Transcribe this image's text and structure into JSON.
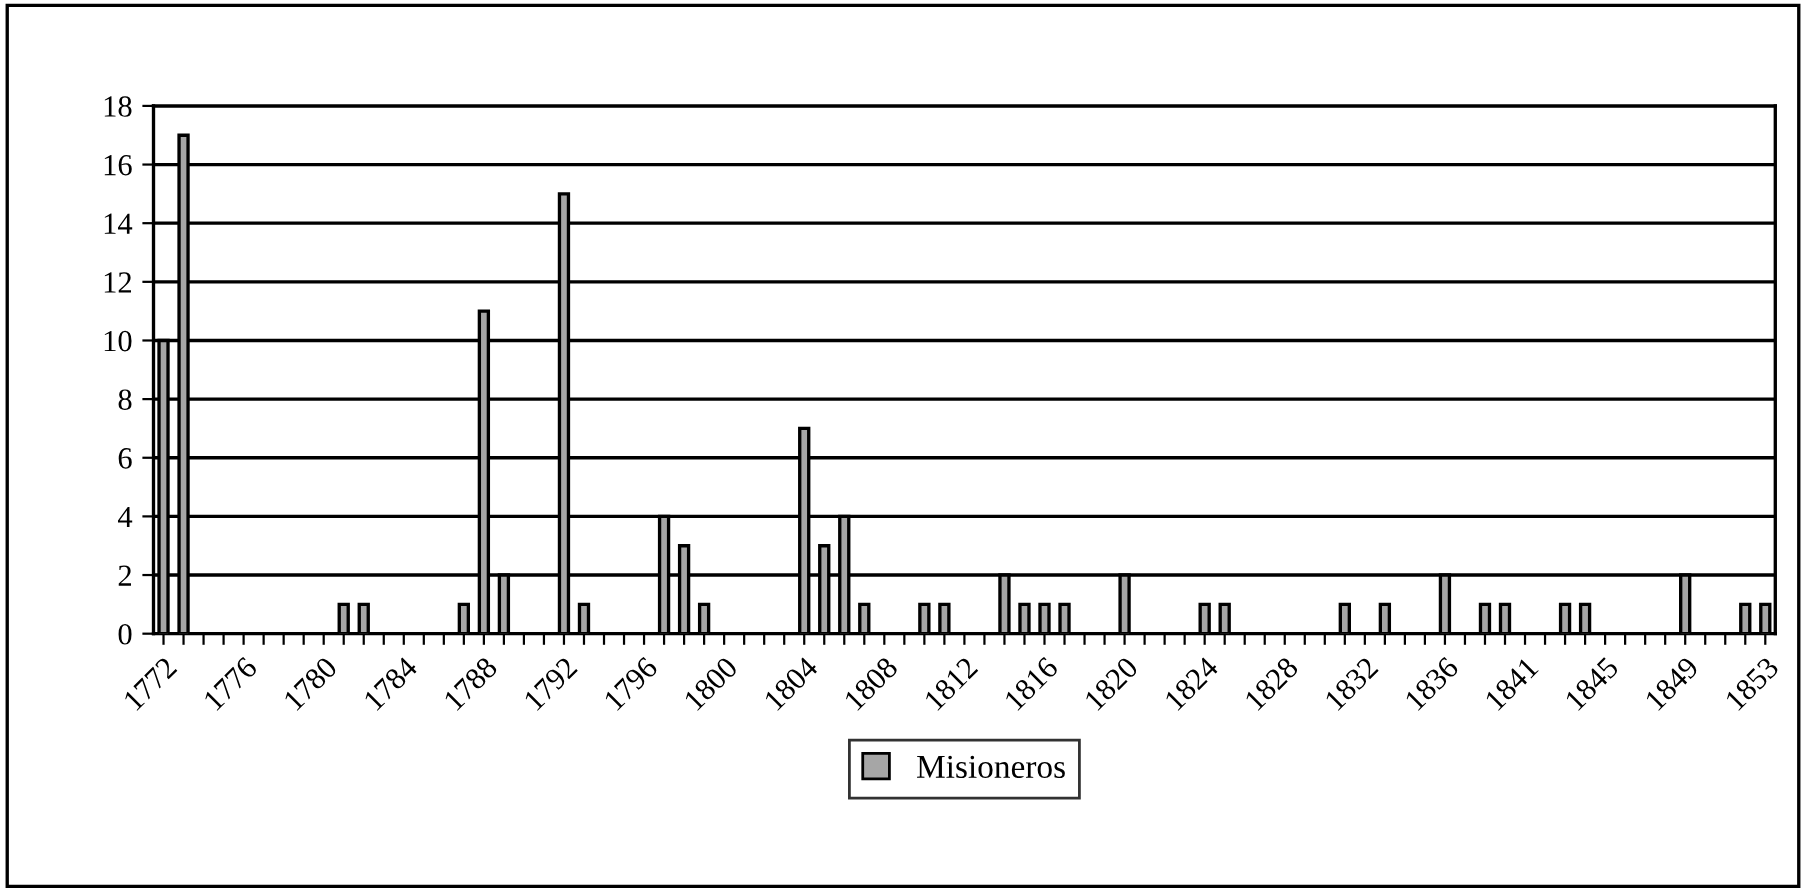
{
  "chart_data": {
    "type": "bar",
    "categories": [
      "1772",
      null,
      null,
      null,
      "1776",
      null,
      null,
      null,
      "1780",
      null,
      null,
      null,
      "1784",
      null,
      null,
      null,
      "1788",
      null,
      null,
      null,
      "1792",
      null,
      null,
      null,
      "1796",
      null,
      null,
      null,
      "1800",
      null,
      null,
      null,
      "1804",
      null,
      null,
      null,
      "1808",
      null,
      null,
      null,
      "1812",
      null,
      null,
      null,
      "1816",
      null,
      null,
      null,
      "1820",
      null,
      null,
      null,
      "1824",
      null,
      null,
      null,
      "1828",
      null,
      null,
      null,
      "1832",
      null,
      null,
      null,
      "1836",
      null,
      null,
      null,
      "1841",
      null,
      null,
      null,
      "1845",
      null,
      null,
      null,
      "1849",
      null,
      null,
      null,
      "1853"
    ],
    "series": [
      {
        "name": "Misioneros",
        "color": "#a6a6a6",
        "values": [
          10,
          17,
          null,
          null,
          null,
          null,
          null,
          null,
          null,
          1,
          1,
          null,
          null,
          null,
          null,
          1,
          11,
          2,
          null,
          null,
          15,
          1,
          null,
          null,
          null,
          4,
          3,
          1,
          null,
          null,
          null,
          null,
          7,
          3,
          4,
          1,
          null,
          null,
          1,
          1,
          null,
          null,
          2,
          1,
          1,
          1,
          null,
          null,
          2,
          null,
          null,
          null,
          1,
          1,
          null,
          null,
          null,
          null,
          null,
          1,
          null,
          1,
          null,
          null,
          2,
          null,
          1,
          1,
          null,
          null,
          1,
          1,
          null,
          null,
          null,
          null,
          2,
          null,
          null,
          1,
          1
        ]
      }
    ],
    "ylim": [
      0,
      18
    ],
    "yticks": [
      0,
      2,
      4,
      6,
      8,
      10,
      12,
      14,
      16,
      18
    ],
    "grid": "y",
    "legend": "bottom"
  }
}
